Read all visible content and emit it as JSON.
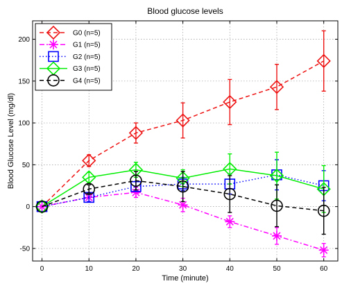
{
  "chart_data": {
    "type": "line",
    "title": "Blood glucose levels",
    "xlabel": "Time (minute)",
    "ylabel": "Blood Glucose Level (mg/dl)",
    "xlim": [
      -2,
      63
    ],
    "ylim": [
      -65,
      222
    ],
    "x_ticks": [
      0,
      10,
      20,
      30,
      40,
      50,
      60
    ],
    "y_ticks": [
      -50,
      0,
      50,
      100,
      150,
      200
    ],
    "grid": true,
    "legend_position": "top-left",
    "x": [
      0,
      10,
      20,
      30,
      40,
      50,
      60
    ],
    "series": [
      {
        "name": "G0 (n=5)",
        "color": "#ee1111",
        "line_style": "dashed",
        "marker": "diamond",
        "values": [
          0,
          55,
          88,
          103,
          125,
          143,
          174
        ],
        "errors": [
          0,
          7,
          12,
          21,
          27,
          27,
          36
        ]
      },
      {
        "name": "G1 (n=5)",
        "color": "#ff00ff",
        "line_style": "dashdot",
        "marker": "asterisk",
        "values": [
          0,
          11,
          17,
          2,
          -18,
          -35,
          -52
        ],
        "errors": [
          0,
          5,
          6,
          8,
          7,
          10,
          8
        ]
      },
      {
        "name": "G2 (n=5)",
        "color": "#0000ff",
        "line_style": "dotted",
        "marker": "square",
        "values": [
          0,
          11,
          24,
          27,
          27,
          38,
          25
        ],
        "errors": [
          0,
          5,
          6,
          8,
          12,
          18,
          18
        ]
      },
      {
        "name": "G3 (n=5)",
        "color": "#00ee00",
        "line_style": "solid",
        "marker": "diamond",
        "values": [
          0,
          35,
          44,
          34,
          45,
          37,
          21
        ],
        "errors": [
          0,
          6,
          9,
          10,
          18,
          28,
          28
        ]
      },
      {
        "name": "G4 (n=5)",
        "color": "#000000",
        "line_style": "dashed",
        "marker": "circle",
        "values": [
          0,
          21,
          31,
          24,
          15,
          1,
          -5
        ],
        "errors": [
          0,
          5,
          11,
          18,
          22,
          25,
          28
        ]
      }
    ]
  }
}
